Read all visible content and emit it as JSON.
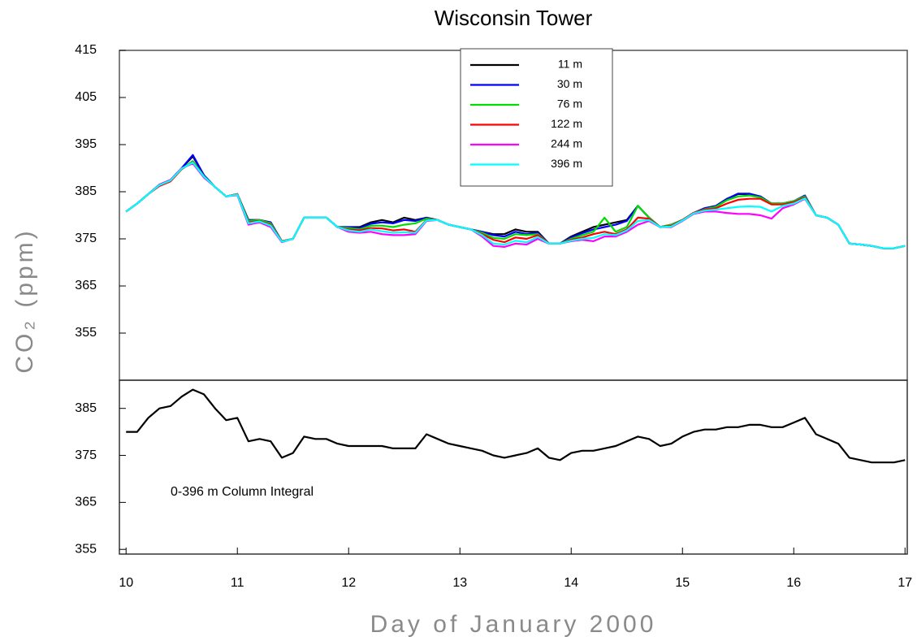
{
  "chart_data": [
    {
      "type": "line",
      "title": "Wisconsin Tower",
      "ylabel": "CO₂ (ppm)",
      "legend": "upper center",
      "xlim": [
        9.94,
        17.02
      ],
      "ylim": [
        345,
        415
      ],
      "yticks": [
        355,
        365,
        375,
        385,
        395,
        405,
        415
      ],
      "x": [
        10.0,
        10.1,
        10.2,
        10.3,
        10.4,
        10.5,
        10.6,
        10.7,
        10.8,
        10.9,
        11.0,
        11.1,
        11.2,
        11.3,
        11.4,
        11.5,
        11.6,
        11.7,
        11.8,
        11.9,
        12.0,
        12.1,
        12.2,
        12.3,
        12.4,
        12.5,
        12.6,
        12.7,
        12.8,
        12.9,
        13.0,
        13.1,
        13.2,
        13.3,
        13.4,
        13.5,
        13.6,
        13.7,
        13.8,
        13.9,
        14.0,
        14.1,
        14.2,
        14.3,
        14.4,
        14.5,
        14.6,
        14.7,
        14.8,
        14.9,
        15.0,
        15.1,
        15.2,
        15.3,
        15.4,
        15.5,
        15.6,
        15.7,
        15.8,
        15.9,
        16.0,
        16.1,
        16.2,
        16.3,
        16.4,
        16.5,
        16.6,
        16.7,
        16.8,
        16.9,
        17.0
      ],
      "series": [
        {
          "name": "11 m",
          "color": "#000000",
          "values": [
            380.8,
            382.5,
            384.5,
            386.5,
            387.5,
            390,
            392.5,
            388.5,
            386,
            384,
            384.5,
            379,
            379,
            378.5,
            374.5,
            375,
            379.5,
            379.5,
            379.5,
            377.5,
            377.5,
            377.5,
            378.5,
            379,
            378.5,
            379.5,
            379,
            379.5,
            379,
            378,
            377.5,
            377,
            376.5,
            376,
            376,
            377,
            376.5,
            376.5,
            374,
            374,
            375.5,
            376.5,
            377.5,
            378,
            378.5,
            379,
            382,
            379.5,
            377.5,
            378,
            379,
            380.5,
            381.5,
            382,
            383.5,
            384.5,
            384.5,
            384,
            382.5,
            382.5,
            383,
            384,
            380,
            379.5,
            378,
            374,
            373.8,
            373.5,
            373,
            373,
            373.5
          ]
        },
        {
          "name": "30 m",
          "color": "#0000ff",
          "values": [
            380.8,
            382.5,
            384.5,
            386.5,
            387.5,
            390,
            392.8,
            388.5,
            386,
            384,
            384.5,
            379,
            379,
            378.5,
            374.5,
            375,
            379.5,
            379.5,
            379.5,
            377.5,
            377.5,
            377.3,
            378.2,
            378.5,
            378.3,
            379,
            378.8,
            379.5,
            379,
            378,
            377.5,
            377,
            376.5,
            375.8,
            375.5,
            376.5,
            376,
            376.3,
            374,
            374,
            375.3,
            376.2,
            377,
            377.5,
            378,
            378.8,
            382,
            379.5,
            377.5,
            378,
            379,
            380.5,
            381.5,
            382,
            383.5,
            384.6,
            384.6,
            384,
            382.5,
            382.5,
            383,
            384.2,
            380,
            379.5,
            378,
            374,
            373.8,
            373.5,
            373,
            373,
            373.5
          ]
        },
        {
          "name": "76 m",
          "color": "#00dd00",
          "values": [
            380.8,
            382.5,
            384.5,
            386.3,
            387.3,
            389.8,
            391.5,
            388.3,
            386,
            384,
            384.5,
            378.8,
            379,
            378.3,
            374.5,
            375,
            379.5,
            379.5,
            379.5,
            377.5,
            377.3,
            377,
            377.8,
            377.8,
            377.5,
            378,
            378.3,
            379.3,
            379,
            378,
            377.5,
            377,
            376.3,
            375.2,
            375,
            376,
            375.8,
            376,
            374,
            374,
            375,
            375.8,
            376.5,
            379.5,
            376.5,
            377.5,
            382,
            379.5,
            377.5,
            378,
            379,
            380.5,
            381.3,
            381.8,
            383.2,
            384,
            384.2,
            383.8,
            382.5,
            382.5,
            383,
            384,
            380,
            379.5,
            378,
            374,
            373.8,
            373.5,
            373,
            373,
            373.5
          ]
        },
        {
          "name": "122 m",
          "color": "#ff0000",
          "values": [
            380.8,
            382.5,
            384.5,
            386.2,
            387.2,
            389.8,
            391.3,
            388.2,
            386,
            384,
            384.5,
            378.5,
            378.8,
            378,
            374.5,
            375,
            379.5,
            379.5,
            379.5,
            377.5,
            377,
            376.8,
            377.3,
            377.2,
            376.8,
            377,
            376.5,
            379,
            379,
            378,
            377.5,
            377,
            376,
            374.8,
            374.3,
            375.3,
            375,
            375.8,
            374,
            374,
            374.8,
            375.3,
            376,
            376.5,
            376,
            377,
            379.5,
            379.3,
            377.5,
            377.8,
            379,
            380.5,
            381.2,
            381.5,
            382.5,
            383.3,
            383.5,
            383.5,
            382.3,
            382.3,
            382.8,
            383.8,
            380,
            379.5,
            378,
            374,
            373.8,
            373.5,
            373,
            373,
            373.5
          ]
        },
        {
          "name": "244 m",
          "color": "#ff00ff",
          "values": [
            380.8,
            382.5,
            384.5,
            386.5,
            387.5,
            390,
            391,
            388,
            386,
            384,
            384.3,
            378,
            378.5,
            377.5,
            374.3,
            375,
            379.5,
            379.5,
            379.5,
            377.5,
            376.5,
            376.3,
            376.5,
            376,
            375.8,
            375.8,
            376,
            378.8,
            379,
            378,
            377.5,
            377,
            375.5,
            373.5,
            373.3,
            374,
            373.8,
            375,
            374,
            374,
            374.5,
            374.8,
            374.5,
            375.5,
            375.5,
            376.5,
            378,
            378.8,
            377.5,
            377.5,
            378.8,
            380.3,
            380.8,
            380.8,
            380.5,
            380.3,
            380.3,
            380,
            379.3,
            381.5,
            382.3,
            383.5,
            380,
            379.5,
            378,
            374,
            373.8,
            373.5,
            373,
            373,
            373.5
          ]
        },
        {
          "name": "396 m",
          "color": "#00ffff",
          "values": [
            380.8,
            382.5,
            384.5,
            386.4,
            387.4,
            389.9,
            391.2,
            388.2,
            386,
            384,
            384.4,
            378.3,
            378.7,
            377.8,
            374.4,
            375,
            379.5,
            379.5,
            379.5,
            377.5,
            376.8,
            376.5,
            377,
            376.6,
            376.3,
            376.4,
            376.3,
            378.9,
            379,
            378,
            377.5,
            377,
            375.8,
            374,
            373.8,
            374.6,
            374.3,
            375.4,
            374,
            374,
            374.6,
            375,
            375.2,
            376,
            375.8,
            376.8,
            378.8,
            379,
            377.5,
            377.6,
            378.9,
            380.4,
            381,
            381.2,
            381.5,
            381.8,
            381.9,
            381.8,
            380.8,
            382,
            382.5,
            383.6,
            380,
            379.5,
            378,
            374,
            373.8,
            373.5,
            373,
            373,
            373.5
          ]
        }
      ]
    },
    {
      "type": "line",
      "annotation": "0-396 m Column Integral",
      "xlabel": "Day of January 2000",
      "xlim": [
        9.94,
        17.02
      ],
      "xticks": [
        10,
        11,
        12,
        13,
        14,
        15,
        16,
        17
      ],
      "ylim": [
        354,
        391
      ],
      "yticks": [
        355,
        365,
        375,
        385
      ],
      "x": [
        10.0,
        10.1,
        10.2,
        10.3,
        10.4,
        10.5,
        10.6,
        10.7,
        10.8,
        10.9,
        11.0,
        11.1,
        11.2,
        11.3,
        11.4,
        11.5,
        11.6,
        11.7,
        11.8,
        11.9,
        12.0,
        12.1,
        12.2,
        12.3,
        12.4,
        12.5,
        12.6,
        12.7,
        12.8,
        12.9,
        13.0,
        13.1,
        13.2,
        13.3,
        13.4,
        13.5,
        13.6,
        13.7,
        13.8,
        13.9,
        14.0,
        14.1,
        14.2,
        14.3,
        14.4,
        14.5,
        14.6,
        14.7,
        14.8,
        14.9,
        15.0,
        15.1,
        15.2,
        15.3,
        15.4,
        15.5,
        15.6,
        15.7,
        15.8,
        15.9,
        16.0,
        16.1,
        16.2,
        16.3,
        16.4,
        16.5,
        16.6,
        16.7,
        16.8,
        16.9,
        17.0
      ],
      "series": [
        {
          "color": "#000000",
          "values": [
            380,
            380,
            383,
            385,
            385.5,
            387.5,
            389,
            388,
            385,
            382.5,
            383,
            378,
            378.5,
            378,
            374.5,
            375.5,
            379,
            378.5,
            378.5,
            377.5,
            377,
            377,
            377,
            377,
            376.5,
            376.5,
            376.5,
            379.5,
            378.5,
            377.5,
            377,
            376.5,
            376,
            375,
            374.5,
            375,
            375.5,
            376.5,
            374.5,
            374,
            375.5,
            376,
            376,
            376.5,
            377,
            378,
            379,
            378.5,
            377,
            377.5,
            379,
            380,
            380.5,
            380.5,
            381,
            381,
            381.5,
            381.5,
            381,
            381,
            382,
            383,
            379.5,
            378.5,
            377.5,
            374.5,
            374,
            373.5,
            373.5,
            373.5,
            374
          ]
        }
      ]
    }
  ]
}
